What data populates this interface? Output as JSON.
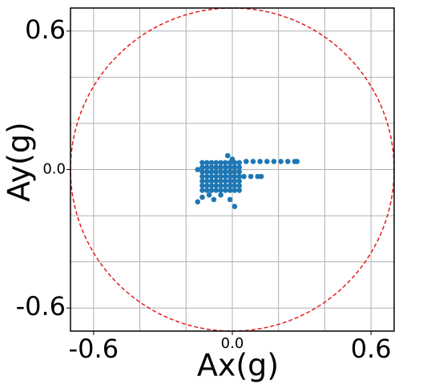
{
  "chart_data": {
    "type": "scatter",
    "xlabel": "Ax(g)",
    "ylabel": "Ay(g)",
    "xlim": [
      -0.7,
      0.7
    ],
    "ylim": [
      -0.7,
      0.7
    ],
    "xticks": [
      -0.6,
      {
        "value": 0,
        "label": "0.0"
      },
      0.6
    ],
    "yticks": [
      -0.6,
      {
        "value": 0,
        "label": "0.0"
      },
      0.6
    ],
    "xgrid": [
      -0.6,
      -0.4,
      -0.2,
      0,
      0.2,
      0.4,
      0.6
    ],
    "ygrid": [
      -0.6,
      -0.4,
      -0.2,
      0,
      0.2,
      0.4,
      0.6
    ],
    "grid": true,
    "circle": {
      "radius": 0.7,
      "color": "#e41a1c"
    },
    "series": [
      {
        "color": "#1f77b4",
        "x": [
          -0.13,
          -0.11,
          -0.09,
          -0.07,
          -0.05,
          -0.03,
          -0.01,
          0.01,
          0.03,
          -0.13,
          -0.11,
          -0.09,
          -0.07,
          -0.05,
          -0.03,
          -0.01,
          0.01,
          0.03,
          -0.13,
          -0.11,
          -0.09,
          -0.07,
          -0.05,
          -0.03,
          -0.01,
          0.01,
          0.03,
          -0.13,
          -0.11,
          -0.09,
          -0.07,
          -0.05,
          -0.03,
          -0.01,
          0.01,
          0.03,
          -0.13,
          -0.11,
          -0.09,
          -0.07,
          -0.05,
          -0.03,
          -0.01,
          0.01,
          0.03,
          -0.13,
          -0.11,
          -0.09,
          -0.07,
          -0.05,
          -0.03,
          -0.01,
          0.01,
          0.03,
          -0.13,
          -0.11,
          -0.09,
          -0.07,
          -0.05,
          -0.03,
          -0.01,
          0.01,
          0.03,
          -0.15,
          -0.13,
          -0.1,
          -0.05,
          -0.01,
          0.01,
          -0.08,
          -0.15,
          -0.02,
          0.0,
          0.06,
          0.09,
          0.12,
          0.15,
          0.18,
          0.21,
          0.24,
          0.27,
          0.28,
          0.05,
          0.08,
          0.11,
          0.125
        ],
        "y": [
          0.03,
          0.03,
          0.03,
          0.03,
          0.03,
          0.03,
          0.03,
          0.03,
          0.03,
          0.01,
          0.01,
          0.01,
          0.01,
          0.01,
          0.01,
          0.01,
          0.01,
          0.01,
          -0.01,
          -0.01,
          -0.01,
          -0.01,
          -0.01,
          -0.01,
          -0.01,
          -0.01,
          -0.01,
          -0.03,
          -0.03,
          -0.03,
          -0.03,
          -0.03,
          -0.03,
          -0.03,
          -0.03,
          -0.03,
          -0.05,
          -0.05,
          -0.05,
          -0.05,
          -0.05,
          -0.05,
          -0.05,
          -0.05,
          -0.05,
          -0.07,
          -0.07,
          -0.07,
          -0.07,
          -0.07,
          -0.07,
          -0.07,
          -0.07,
          -0.07,
          -0.09,
          -0.09,
          -0.09,
          -0.09,
          -0.09,
          -0.09,
          -0.09,
          -0.09,
          -0.09,
          -0.14,
          -0.12,
          -0.11,
          -0.11,
          -0.13,
          -0.16,
          -0.13,
          0.0,
          0.06,
          0.045,
          0.035,
          0.035,
          0.035,
          0.035,
          0.035,
          0.035,
          0.035,
          0.035,
          0.035,
          -0.03,
          -0.03,
          -0.03,
          -0.03
        ]
      }
    ]
  }
}
